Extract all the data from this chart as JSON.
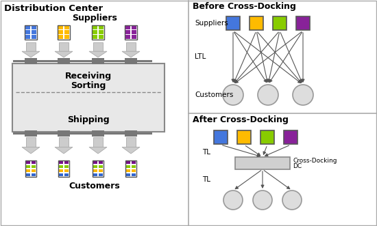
{
  "left_title": "Distribution Center",
  "right_top_title": "Before Cross-Docking",
  "right_bot_title": "After Cross-Docking",
  "supplier_colors": [
    "#4477DD",
    "#FFBB00",
    "#88CC00",
    "#882299"
  ],
  "dc_fill": "#E8E8E8",
  "dc_border": "#888888",
  "arrow_color": "#CCCCCC",
  "arrow_edge": "#AAAAAA",
  "connector_color": "#777777",
  "bg_color": "#FFFFFF",
  "cust_mixed_rows": [
    "#3366CC",
    "#FFB800",
    "#88CC00",
    "#771188"
  ],
  "circle_face": "#DDDDDD",
  "circle_edge": "#999999",
  "line_color": "#555555",
  "panel_border": "#AAAAAA"
}
